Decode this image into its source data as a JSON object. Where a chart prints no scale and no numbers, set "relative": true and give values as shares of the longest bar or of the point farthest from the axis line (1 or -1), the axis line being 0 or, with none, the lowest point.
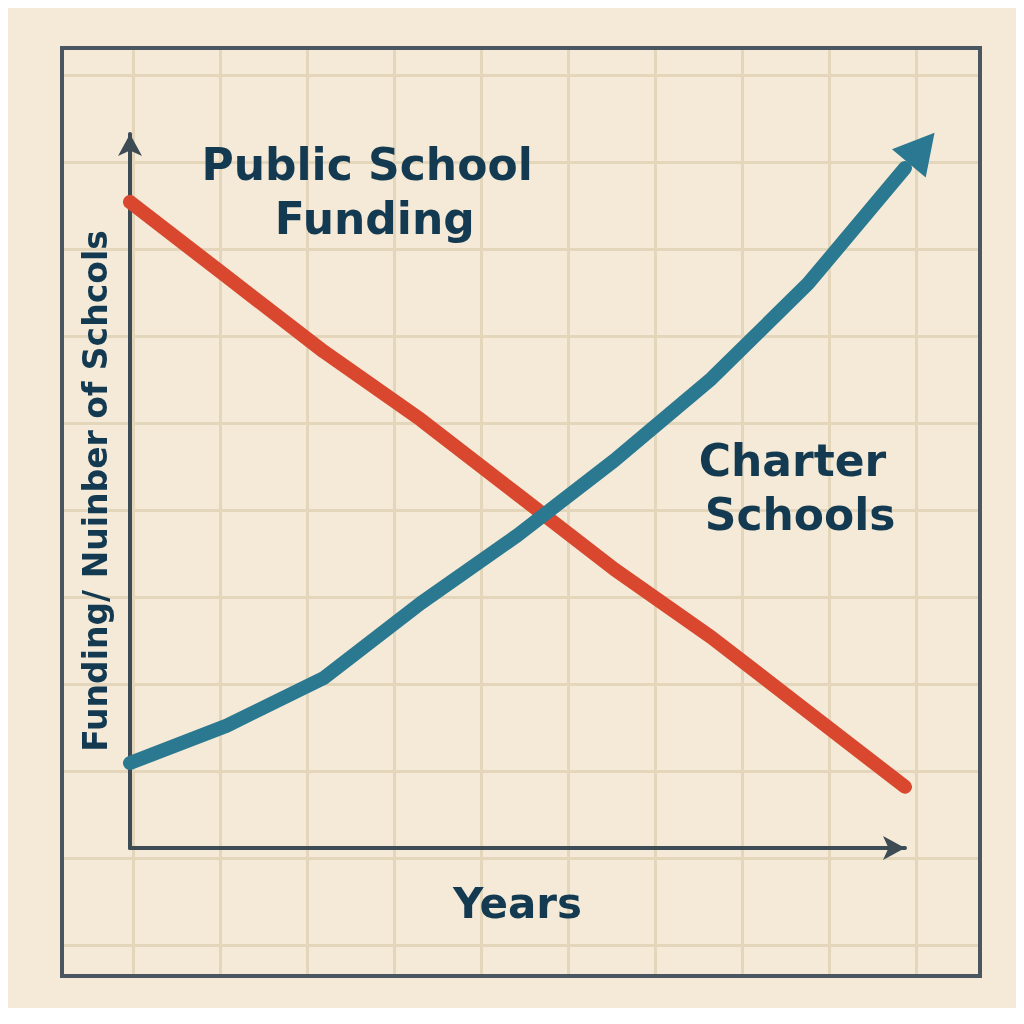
{
  "chart_data": {
    "type": "line",
    "relative": true,
    "xlabel": "Years",
    "ylabel": "Funding/ Nuinber of Schcols",
    "categories": [
      null,
      null,
      null,
      null,
      null,
      null,
      null,
      null,
      null
    ],
    "legend": false,
    "series": [
      {
        "name": "Public School Funding",
        "color": "#d9472f",
        "values": [
          0.95,
          0.84,
          0.73,
          0.63,
          0.52,
          0.41,
          0.31,
          0.2,
          0.09
        ]
      },
      {
        "name": "Charter Schools",
        "color": "#2b7891",
        "values": [
          0.125,
          0.18,
          0.25,
          0.36,
          0.46,
          0.57,
          0.69,
          0.83,
          1
        ]
      }
    ]
  }
}
